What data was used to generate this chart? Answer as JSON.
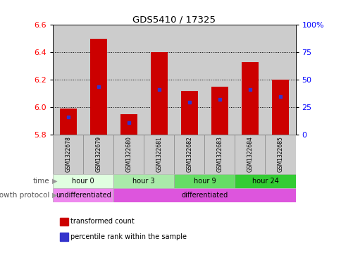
{
  "title": "GDS5410 / 17325",
  "samples": [
    "GSM1322678",
    "GSM1322679",
    "GSM1322680",
    "GSM1322681",
    "GSM1322682",
    "GSM1322683",
    "GSM1322684",
    "GSM1322685"
  ],
  "bar_bottom": 5.8,
  "transformed_counts": [
    5.99,
    6.5,
    5.95,
    6.4,
    6.12,
    6.15,
    6.33,
    6.2
  ],
  "percentile_values": [
    5.93,
    6.15,
    5.89,
    6.13,
    6.04,
    6.06,
    6.13,
    6.08
  ],
  "ylim_left": [
    5.8,
    6.6
  ],
  "ylim_right": [
    0,
    100
  ],
  "yticks_left": [
    5.8,
    6.0,
    6.2,
    6.4,
    6.6
  ],
  "yticks_right": [
    0,
    25,
    50,
    75,
    100
  ],
  "yticks_right_labels": [
    "0",
    "25",
    "50",
    "75",
    "100%"
  ],
  "bar_color": "#cc0000",
  "percentile_color": "#3333cc",
  "time_groups": [
    {
      "label": "hour 0",
      "start": 0,
      "end": 2,
      "color": "#e0ffe0"
    },
    {
      "label": "hour 3",
      "start": 2,
      "end": 4,
      "color": "#aaeaaa"
    },
    {
      "label": "hour 9",
      "start": 4,
      "end": 6,
      "color": "#66dd66"
    },
    {
      "label": "hour 24",
      "start": 6,
      "end": 8,
      "color": "#33cc33"
    }
  ],
  "protocol_groups": [
    {
      "label": "undifferentiated",
      "start": 0,
      "end": 2,
      "color": "#ee88ee"
    },
    {
      "label": "differentiated",
      "start": 2,
      "end": 8,
      "color": "#dd55dd"
    }
  ],
  "time_label": "time",
  "protocol_label": "growth protocol",
  "legend_items": [
    {
      "label": "transformed count",
      "color": "#cc0000"
    },
    {
      "label": "percentile rank within the sample",
      "color": "#3333cc"
    }
  ],
  "bar_width": 0.55,
  "sample_col_color": "#cccccc",
  "sample_col_alt_color": "#bbbbbb"
}
